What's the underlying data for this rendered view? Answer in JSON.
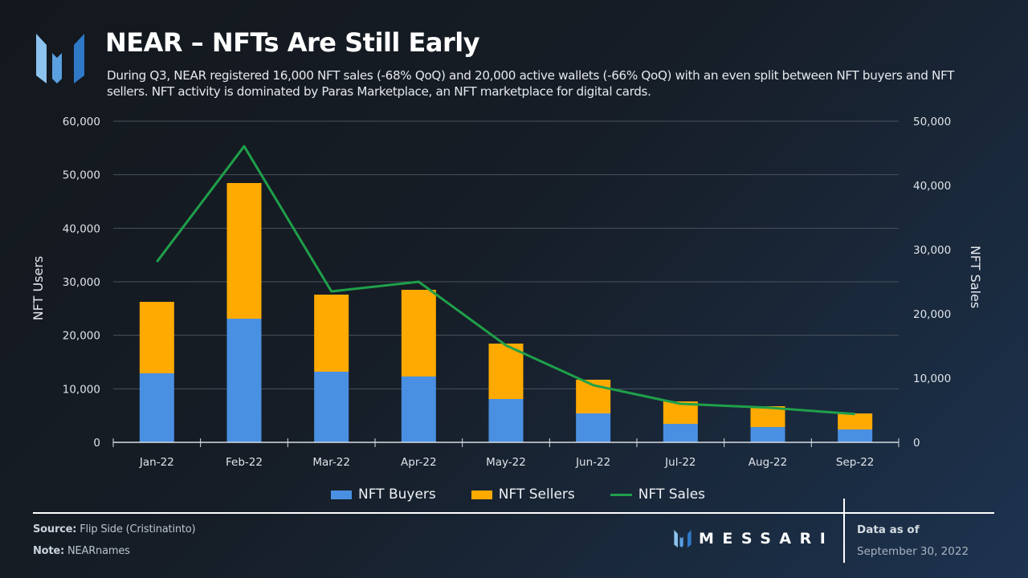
{
  "header": {
    "title": "NEAR – NFTs Are Still Early",
    "subtitle": "During Q3, NEAR registered 16,000 NFT sales (-68% QoQ) and 20,000 active wallets (-66% QoQ) with an even split between NFT buyers and NFT sellers. NFT activity is dominated by Paras Marketplace, an NFT marketplace for digital cards.",
    "logo_icon": "messari-logo-icon"
  },
  "colors": {
    "buyers": "#4a90e2",
    "sellers": "#ffaa00",
    "sales": "#1fa04a",
    "grid": "#4a525c",
    "axis": "#d9dde2"
  },
  "chart_data": {
    "type": "bar",
    "stacked": true,
    "title": "NEAR – NFTs Are Still Early",
    "categories": [
      "Jan-22",
      "Feb-22",
      "Mar-22",
      "Apr-22",
      "May-22",
      "Jun-22",
      "Jul-22",
      "Aug-22",
      "Sep-22"
    ],
    "series": [
      {
        "name": "NFT Buyers",
        "type": "bar",
        "axis": "left",
        "values": [
          12900,
          23100,
          13200,
          12300,
          8100,
          5400,
          3450,
          2850,
          2400
        ]
      },
      {
        "name": "NFT Sellers",
        "type": "bar",
        "axis": "left",
        "values": [
          13350,
          25350,
          14400,
          16200,
          10350,
          6300,
          4200,
          3900,
          3000
        ]
      },
      {
        "name": "NFT Sales",
        "type": "line",
        "axis": "right",
        "values": [
          28100,
          46100,
          23500,
          25000,
          15100,
          8900,
          6000,
          5400,
          4400
        ]
      }
    ],
    "ylabel": "NFT Users",
    "y2label": "NFT Sales",
    "xlabel": "",
    "ylim": [
      0,
      60000
    ],
    "y2lim": [
      0,
      50000
    ],
    "yticks": [
      "0",
      "10,000",
      "20,000",
      "30,000",
      "40,000",
      "50,000",
      "60,000"
    ],
    "y2ticks": [
      "0",
      "10,000",
      "20,000",
      "30,000",
      "40,000",
      "50,000"
    ],
    "grid": true,
    "legend": "bottom-center"
  },
  "legend": {
    "items": [
      {
        "label": "NFT Buyers",
        "kind": "box"
      },
      {
        "label": "NFT Sellers",
        "kind": "box"
      },
      {
        "label": "NFT Sales",
        "kind": "line"
      }
    ]
  },
  "footer": {
    "source_label": "Source:",
    "source_value": "Flip Side (Cristinatinto)",
    "note_label": "Note:",
    "note_value": "NEARnames",
    "brand": "MESSARI",
    "data_as_of_label": "Data as of",
    "data_as_of_date": "September 30, 2022"
  }
}
